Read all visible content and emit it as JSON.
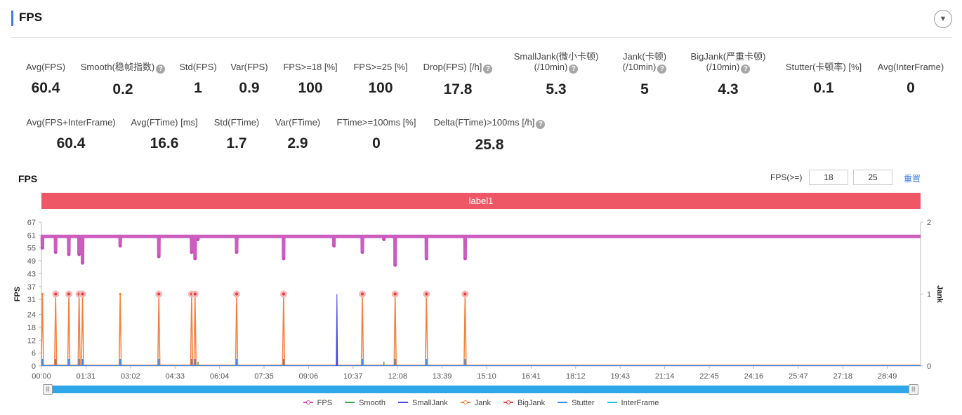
{
  "header": {
    "title": "FPS",
    "collapse_icon": "▼"
  },
  "stats_row1": [
    {
      "label": "Avg(FPS)",
      "value": "60.4",
      "help": false
    },
    {
      "label": "Smooth(稳帧指数)",
      "value": "0.2",
      "help": true
    },
    {
      "label": "Std(FPS)",
      "value": "1",
      "help": false
    },
    {
      "label": "Var(FPS)",
      "value": "0.9",
      "help": false
    },
    {
      "label": "FPS>=18 [%]",
      "value": "100",
      "help": false
    },
    {
      "label": "FPS>=25 [%]",
      "value": "100",
      "help": false
    },
    {
      "label": "Drop(FPS) [/h]",
      "value": "17.8",
      "help": true
    },
    {
      "label": "SmallJank(微小卡顿)",
      "label2": "(/10min)",
      "value": "5.3",
      "help": true
    },
    {
      "label": "Jank(卡顿)",
      "label2": "(/10min)",
      "value": "5",
      "help": true
    },
    {
      "label": "BigJank(严重卡顿)",
      "label2": "(/10min)",
      "value": "4.3",
      "help": true
    },
    {
      "label": "Stutter(卡顿率) [%]",
      "value": "0.1",
      "help": false
    },
    {
      "label": "Avg(InterFrame)",
      "value": "0",
      "help": false
    }
  ],
  "stats_row2": [
    {
      "label": "Avg(FPS+InterFrame)",
      "value": "60.4",
      "help": false
    },
    {
      "label": "Avg(FTime) [ms]",
      "value": "16.6",
      "help": false
    },
    {
      "label": "Std(FTime)",
      "value": "1.7",
      "help": false
    },
    {
      "label": "Var(FTime)",
      "value": "2.9",
      "help": false
    },
    {
      "label": "FTime>=100ms [%]",
      "value": "0",
      "help": false
    },
    {
      "label": "Delta(FTime)>100ms [/h]",
      "value": "25.8",
      "help": true
    }
  ],
  "help_icon": "?",
  "fps_section": {
    "title": "FPS",
    "threshold_label": "FPS(>=)",
    "threshold_low": "18",
    "threshold_high": "25",
    "reset_label": "重置",
    "label_bar_text": "label1"
  },
  "slider": {
    "handle_left_icon": "|||",
    "handle_right_icon": "|||"
  },
  "chart_data": {
    "type": "line",
    "left_axis": {
      "label": "FPS",
      "ticks": [
        0,
        6,
        12,
        18,
        24,
        31,
        37,
        43,
        49,
        55,
        61,
        67
      ],
      "range": [
        0,
        67
      ]
    },
    "right_axis": {
      "label": "Jank",
      "ticks": [
        0,
        1,
        2
      ],
      "range": [
        0,
        2
      ]
    },
    "x_axis": {
      "ticks": [
        "00:00",
        "01:31",
        "03:02",
        "04:33",
        "06:04",
        "07:35",
        "09:06",
        "10:37",
        "12:08",
        "13:39",
        "15:10",
        "16:41",
        "18:12",
        "19:43",
        "21:14",
        "22:45",
        "24:16",
        "25:47",
        "27:18",
        "28:49"
      ],
      "tick_seconds": [
        0,
        91,
        182,
        273,
        364,
        455,
        546,
        637,
        728,
        819,
        910,
        1001,
        1092,
        1183,
        1274,
        1365,
        1456,
        1547,
        1638,
        1729
      ],
      "end_seconds": 1797
    },
    "fps_baseline": 60.4,
    "fps_dips": [
      [
        2,
        55
      ],
      [
        29,
        53
      ],
      [
        56,
        52
      ],
      [
        77,
        52
      ],
      [
        84,
        48
      ],
      [
        161,
        56
      ],
      [
        240,
        51
      ],
      [
        307,
        53
      ],
      [
        314,
        50
      ],
      [
        320,
        59
      ],
      [
        399,
        53
      ],
      [
        495,
        50
      ],
      [
        598,
        56
      ],
      [
        656,
        53
      ],
      [
        700,
        59
      ],
      [
        723,
        47
      ],
      [
        787,
        50
      ],
      [
        866,
        50
      ]
    ],
    "big_jank": [
      29,
      56,
      77,
      84,
      240,
      307,
      314,
      399,
      495,
      656,
      723,
      787,
      866
    ],
    "jank_only": [
      2,
      161
    ],
    "small_jank": [
      [
        604,
        1
      ]
    ],
    "smooth_ticks": [
      320,
      700
    ],
    "series": [
      {
        "name": "FPS",
        "color": "#c84ab8",
        "marker": "circle"
      },
      {
        "name": "Smooth",
        "color": "#3daa4c",
        "marker": "none"
      },
      {
        "name": "SmallJank",
        "color": "#4a47e0",
        "marker": "none"
      },
      {
        "name": "Jank",
        "color": "#f5803e",
        "marker": "circle"
      },
      {
        "name": "BigJank",
        "color": "#e83a3a",
        "marker": "circle"
      },
      {
        "name": "Stutter",
        "color": "#3d8ee8",
        "marker": "none"
      },
      {
        "name": "InterFrame",
        "color": "#27c1d9",
        "marker": "none"
      }
    ],
    "legend_position": "bottom"
  }
}
